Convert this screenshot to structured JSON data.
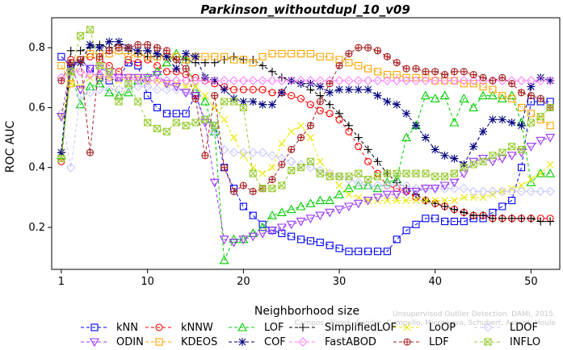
{
  "chart_data": {
    "type": "line",
    "title": "Parkinson_withoutdupl_10_v09",
    "xlabel": "Neighborhood size",
    "ylabel": "ROC AUC",
    "xlim": [
      0,
      53
    ],
    "ylim": [
      0.06,
      0.9
    ],
    "xticks": [
      1,
      10,
      20,
      30,
      40,
      50
    ],
    "yticks": [
      0.2,
      0.4,
      0.6,
      0.8
    ],
    "x": [
      1,
      2,
      3,
      4,
      5,
      6,
      7,
      8,
      9,
      10,
      11,
      12,
      13,
      14,
      15,
      16,
      17,
      18,
      19,
      20,
      21,
      22,
      23,
      24,
      25,
      26,
      27,
      28,
      29,
      30,
      31,
      32,
      33,
      34,
      35,
      36,
      37,
      38,
      39,
      40,
      41,
      42,
      43,
      44,
      45,
      46,
      47,
      48,
      49,
      50,
      51,
      52
    ],
    "legend_placement": "bottom",
    "series": [
      {
        "name": "kNN",
        "color": "#0000ff",
        "marker": "square",
        "values": [
          0.77,
          0.74,
          0.76,
          0.73,
          0.7,
          0.69,
          0.7,
          0.75,
          0.74,
          0.64,
          0.6,
          0.58,
          0.58,
          0.58,
          0.64,
          0.56,
          0.54,
          0.4,
          0.33,
          0.27,
          0.24,
          0.21,
          0.19,
          0.18,
          0.17,
          0.16,
          0.155,
          0.15,
          0.14,
          0.13,
          0.12,
          0.12,
          0.12,
          0.12,
          0.12,
          0.16,
          0.19,
          0.21,
          0.23,
          0.23,
          0.22,
          0.22,
          0.22,
          0.23,
          0.23,
          0.25,
          0.27,
          0.29,
          0.4,
          0.62,
          0.62,
          0.62
        ]
      },
      {
        "name": "kNNW",
        "color": "#ff0000",
        "marker": "circle",
        "values": [
          0.42,
          0.76,
          0.76,
          0.77,
          0.76,
          0.74,
          0.72,
          0.76,
          0.75,
          0.76,
          0.74,
          0.72,
          0.72,
          0.71,
          0.7,
          0.69,
          0.68,
          0.67,
          0.66,
          0.66,
          0.66,
          0.66,
          0.65,
          0.65,
          0.64,
          0.63,
          0.61,
          0.59,
          0.58,
          0.56,
          0.52,
          0.47,
          0.42,
          0.38,
          0.34,
          0.33,
          0.32,
          0.3,
          0.29,
          0.28,
          0.27,
          0.26,
          0.25,
          0.24,
          0.24,
          0.23,
          0.23,
          0.23,
          0.23,
          0.23,
          0.23,
          0.23
        ]
      },
      {
        "name": "LOF",
        "color": "#00cc00",
        "marker": "triangle",
        "values": [
          0.44,
          0.72,
          0.61,
          0.67,
          0.68,
          0.65,
          0.64,
          0.65,
          0.69,
          0.7,
          0.72,
          0.75,
          0.78,
          0.76,
          0.66,
          0.62,
          0.52,
          0.09,
          0.16,
          0.16,
          0.18,
          0.2,
          0.24,
          0.25,
          0.26,
          0.27,
          0.28,
          0.29,
          0.29,
          0.31,
          0.33,
          0.34,
          0.34,
          0.33,
          0.35,
          0.36,
          0.5,
          0.54,
          0.64,
          0.63,
          0.64,
          0.55,
          0.63,
          0.6,
          0.64,
          0.64,
          0.63,
          0.64,
          0.55,
          0.35,
          0.38,
          0.38
        ]
      },
      {
        "name": "SimplifiedLOF",
        "color": "#000000",
        "marker": "plus",
        "values": [
          0.45,
          0.79,
          0.79,
          0.8,
          0.81,
          0.8,
          0.81,
          0.79,
          0.78,
          0.77,
          0.77,
          0.77,
          0.76,
          0.76,
          0.75,
          0.75,
          0.75,
          0.76,
          0.77,
          0.76,
          0.76,
          0.74,
          0.72,
          0.7,
          0.69,
          0.68,
          0.66,
          0.64,
          0.61,
          0.58,
          0.54,
          0.5,
          0.46,
          0.42,
          0.38,
          0.35,
          0.33,
          0.31,
          0.29,
          0.28,
          0.27,
          0.26,
          0.25,
          0.24,
          0.24,
          0.23,
          0.23,
          0.23,
          0.23,
          0.23,
          0.22,
          0.22
        ]
      },
      {
        "name": "LoOP",
        "color": "#e8e800",
        "marker": "x",
        "values": [
          0.57,
          0.68,
          0.67,
          0.7,
          0.7,
          0.7,
          0.69,
          0.7,
          0.7,
          0.69,
          0.69,
          0.68,
          0.68,
          0.67,
          0.67,
          0.64,
          0.6,
          0.56,
          0.5,
          0.44,
          0.4,
          0.38,
          0.4,
          0.48,
          0.52,
          0.54,
          0.5,
          0.42,
          0.38,
          0.34,
          0.31,
          0.3,
          0.29,
          0.29,
          0.29,
          0.29,
          0.29,
          0.29,
          0.29,
          0.29,
          0.29,
          0.29,
          0.3,
          0.3,
          0.3,
          0.31,
          0.32,
          0.33,
          0.34,
          0.36,
          0.38,
          0.41
        ]
      },
      {
        "name": "LDOF",
        "color": "#c8c8ff",
        "marker": "diamond",
        "values": [
          0.58,
          0.4,
          0.64,
          0.65,
          0.66,
          0.66,
          0.66,
          0.67,
          0.67,
          0.67,
          0.66,
          0.66,
          0.66,
          0.65,
          0.65,
          0.56,
          0.52,
          0.46,
          0.45,
          0.45,
          0.45,
          0.45,
          0.44,
          0.43,
          0.42,
          0.41,
          0.4,
          0.39,
          0.38,
          0.37,
          0.36,
          0.35,
          0.34,
          0.34,
          0.34,
          0.34,
          0.34,
          0.33,
          0.33,
          0.33,
          0.33,
          0.33,
          0.33,
          0.32,
          0.32,
          0.32,
          0.32,
          0.32,
          0.32,
          0.32,
          0.32,
          0.32
        ]
      },
      {
        "name": "ODIN",
        "color": "#9933ff",
        "marker": "triangle-down",
        "values": [
          0.57,
          0.74,
          0.66,
          0.73,
          0.73,
          0.72,
          0.7,
          0.7,
          0.7,
          0.7,
          0.71,
          0.68,
          0.67,
          0.65,
          0.64,
          0.55,
          0.35,
          0.16,
          0.15,
          0.16,
          0.17,
          0.18,
          0.19,
          0.2,
          0.21,
          0.22,
          0.23,
          0.24,
          0.25,
          0.26,
          0.27,
          0.28,
          0.29,
          0.3,
          0.31,
          0.31,
          0.32,
          0.32,
          0.33,
          0.33,
          0.34,
          0.35,
          0.38,
          0.42,
          0.43,
          0.42,
          0.43,
          0.44,
          0.45,
          0.47,
          0.49,
          0.5
        ]
      },
      {
        "name": "KDEOS",
        "color": "#ffa500",
        "marker": "square",
        "values": [
          0.74,
          0.68,
          0.76,
          0.78,
          0.78,
          0.78,
          0.79,
          0.77,
          0.78,
          0.77,
          0.77,
          0.77,
          0.77,
          0.76,
          0.77,
          0.77,
          0.77,
          0.77,
          0.76,
          0.76,
          0.75,
          0.77,
          0.78,
          0.78,
          0.78,
          0.78,
          0.78,
          0.77,
          0.77,
          0.76,
          0.75,
          0.74,
          0.73,
          0.72,
          0.71,
          0.71,
          0.7,
          0.7,
          0.7,
          0.69,
          0.69,
          0.69,
          0.68,
          0.68,
          0.67,
          0.66,
          0.64,
          0.63,
          0.6,
          0.58,
          0.56,
          0.54
        ]
      },
      {
        "name": "COF",
        "color": "#000080",
        "marker": "star",
        "values": [
          0.45,
          0.74,
          0.75,
          0.81,
          0.8,
          0.82,
          0.82,
          0.8,
          0.79,
          0.79,
          0.78,
          0.77,
          0.73,
          0.78,
          0.77,
          0.7,
          0.69,
          0.66,
          0.63,
          0.62,
          0.62,
          0.61,
          0.61,
          0.65,
          0.69,
          0.68,
          0.68,
          0.67,
          0.65,
          0.66,
          0.66,
          0.66,
          0.66,
          0.64,
          0.62,
          0.61,
          0.58,
          0.54,
          0.5,
          0.46,
          0.44,
          0.43,
          0.41,
          0.47,
          0.52,
          0.56,
          0.56,
          0.55,
          0.54,
          0.67,
          0.7,
          0.69
        ]
      },
      {
        "name": "FastABOD",
        "color": "#ff80ff",
        "marker": "diamond",
        "values": [
          0.7,
          0.72,
          0.72,
          0.71,
          0.71,
          0.7,
          0.7,
          0.7,
          0.69,
          0.69,
          0.69,
          0.69,
          0.69,
          0.69,
          0.69,
          0.69,
          0.69,
          0.69,
          0.69,
          0.69,
          0.69,
          0.69,
          0.69,
          0.69,
          0.69,
          0.69,
          0.69,
          0.69,
          0.69,
          0.69,
          0.69,
          0.69,
          0.69,
          0.69,
          0.69,
          0.69,
          0.69,
          0.69,
          0.69,
          0.69,
          0.69,
          0.69,
          0.69,
          0.69,
          0.69,
          0.69,
          0.69,
          0.69,
          0.69,
          0.69,
          0.69,
          0.69
        ]
      },
      {
        "name": "LDF",
        "color": "#aa2222",
        "marker": "circle-plus",
        "values": [
          0.69,
          0.75,
          0.76,
          0.45,
          0.77,
          0.79,
          0.8,
          0.8,
          0.81,
          0.81,
          0.8,
          0.79,
          0.76,
          0.73,
          0.63,
          0.44,
          0.64,
          0.4,
          0.32,
          0.34,
          0.32,
          0.33,
          0.36,
          0.41,
          0.46,
          0.5,
          0.54,
          0.62,
          0.68,
          0.74,
          0.78,
          0.8,
          0.8,
          0.79,
          0.77,
          0.75,
          0.73,
          0.73,
          0.72,
          0.72,
          0.71,
          0.72,
          0.72,
          0.71,
          0.7,
          0.69,
          0.7,
          0.68,
          0.65,
          0.64,
          0.63,
          0.6
        ]
      },
      {
        "name": "INFLO",
        "color": "#99cc33",
        "marker": "star-burst",
        "values": [
          0.43,
          0.72,
          0.84,
          0.86,
          0.74,
          0.72,
          0.62,
          0.68,
          0.62,
          0.55,
          0.53,
          0.52,
          0.55,
          0.54,
          0.55,
          0.56,
          0.54,
          0.62,
          0.62,
          0.6,
          0.38,
          0.33,
          0.33,
          0.34,
          0.39,
          0.4,
          0.42,
          0.38,
          0.37,
          0.37,
          0.37,
          0.38,
          0.36,
          0.37,
          0.38,
          0.38,
          0.38,
          0.38,
          0.38,
          0.37,
          0.37,
          0.38,
          0.4,
          0.41,
          0.42,
          0.44,
          0.45,
          0.47,
          0.46,
          0.55,
          0.57,
          0.6
        ]
      }
    ]
  },
  "credit": {
    "line1": "Unsupervised Outlier Detection. DAMI, 2015.",
    "line2": "Campos, Zimek, Sander, Campello, Micenkova, Schubert, Assent, Houle"
  }
}
